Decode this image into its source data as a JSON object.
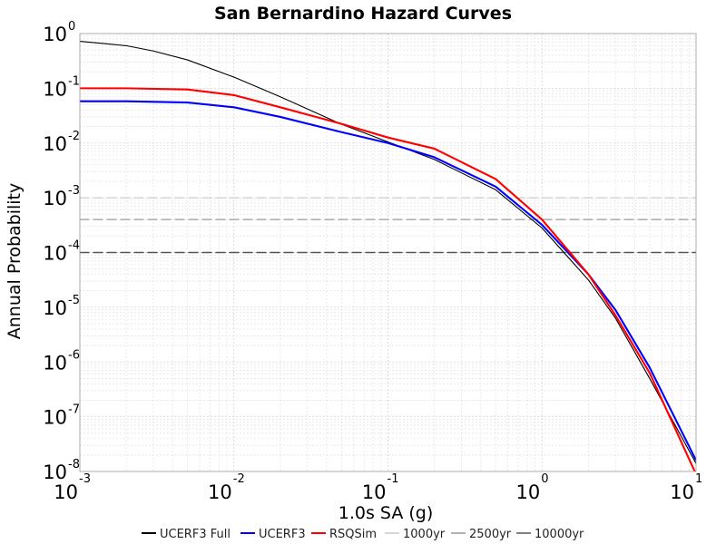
{
  "chart_data": {
    "type": "line",
    "title": "San Bernardino Hazard Curves",
    "xlabel": "1.0s SA (g)",
    "ylabel": "Annual Probability",
    "x_scale": "log",
    "y_scale": "log",
    "xlim": [
      0.001,
      10
    ],
    "ylim": [
      1e-08,
      1
    ],
    "x_ticks": [
      {
        "base": "10",
        "exp": "-3"
      },
      {
        "base": "10",
        "exp": "-2"
      },
      {
        "base": "10",
        "exp": "-1"
      },
      {
        "base": "10",
        "exp": "0"
      },
      {
        "base": "10",
        "exp": "1"
      }
    ],
    "y_ticks": [
      {
        "base": "10",
        "exp": "0"
      },
      {
        "base": "10",
        "exp": "-1"
      },
      {
        "base": "10",
        "exp": "-2"
      },
      {
        "base": "10",
        "exp": "-3"
      },
      {
        "base": "10",
        "exp": "-4"
      },
      {
        "base": "10",
        "exp": "-5"
      },
      {
        "base": "10",
        "exp": "-6"
      },
      {
        "base": "10",
        "exp": "-7"
      },
      {
        "base": "10",
        "exp": "-8"
      }
    ],
    "grid": true,
    "legend_position": "bottom",
    "series": [
      {
        "name": "UCERF3 Full",
        "color": "#000000",
        "x": [
          0.001,
          0.002,
          0.003,
          0.005,
          0.01,
          0.02,
          0.05,
          0.1,
          0.2,
          0.5,
          1.0,
          2.0,
          3.0,
          5.0,
          10.0
        ],
        "y": [
          0.72,
          0.6,
          0.48,
          0.33,
          0.16,
          0.07,
          0.022,
          0.0105,
          0.005,
          0.0014,
          0.00028,
          3.16e-05,
          6.3e-06,
          5e-07,
          1.4e-08
        ]
      },
      {
        "name": "UCERF3",
        "color": "#0000ff",
        "x": [
          0.001,
          0.002,
          0.005,
          0.01,
          0.02,
          0.05,
          0.1,
          0.2,
          0.5,
          1.0,
          2.0,
          3.0,
          5.0,
          10.0
        ],
        "y": [
          0.058,
          0.058,
          0.055,
          0.045,
          0.03,
          0.0158,
          0.01,
          0.0055,
          0.0016,
          0.00032,
          4e-05,
          8.9e-06,
          7.9e-07,
          1.6e-08
        ]
      },
      {
        "name": "RSQSim",
        "color": "#ff0000",
        "x": [
          0.001,
          0.002,
          0.005,
          0.01,
          0.02,
          0.05,
          0.1,
          0.2,
          0.5,
          1.0,
          2.0,
          3.0,
          5.0,
          10.0
        ],
        "y": [
          0.1,
          0.1,
          0.095,
          0.075,
          0.045,
          0.0224,
          0.0126,
          0.0079,
          0.0022,
          0.0004,
          4e-05,
          7.1e-06,
          6.3e-07,
          8.9e-09
        ]
      },
      {
        "name": "1000yr",
        "color": "#cccccc",
        "dashed": true,
        "x": [
          0.001,
          10.0
        ],
        "y": [
          0.001,
          0.001
        ]
      },
      {
        "name": "2500yr",
        "color": "#999999",
        "dashed": true,
        "x": [
          0.001,
          10.0
        ],
        "y": [
          0.0004,
          0.0004
        ]
      },
      {
        "name": "10000yr",
        "color": "#555555",
        "dashed": true,
        "x": [
          0.001,
          10.0
        ],
        "y": [
          0.0001,
          0.0001
        ]
      }
    ]
  }
}
